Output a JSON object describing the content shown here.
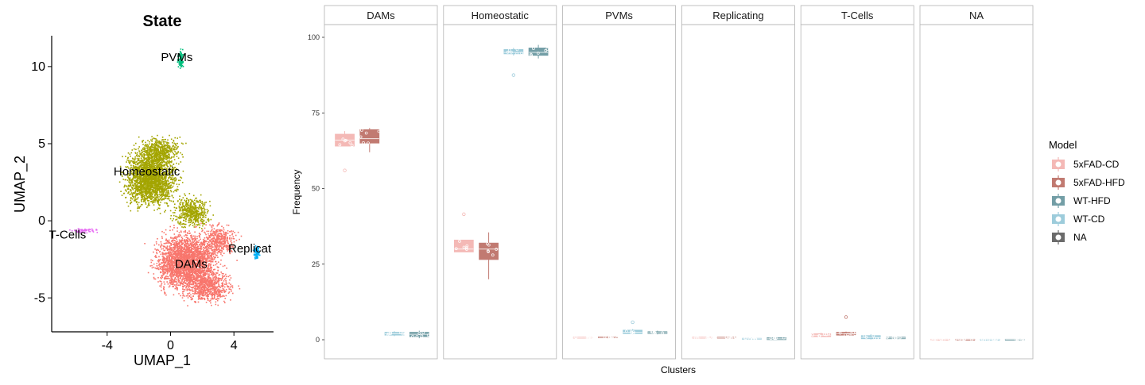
{
  "chart_data": [
    {
      "type": "scatter",
      "title": "State",
      "xlabel": "UMAP_1",
      "ylabel": "UMAP_2",
      "xlim": [
        -7.5,
        6.5
      ],
      "ylim": [
        -7.2,
        12
      ],
      "xticks": [
        -4,
        0,
        4
      ],
      "yticks": [
        -5,
        0,
        5,
        10
      ],
      "clusters": [
        {
          "name": "DAMs",
          "label": "DAMs",
          "color": "#F8766D",
          "label_at": [
            1.3,
            -2.8
          ]
        },
        {
          "name": "Homeostatic",
          "label": "Homeostatic",
          "color": "#A3A500",
          "label_at": [
            -1.5,
            3.2
          ]
        },
        {
          "name": "PVMs",
          "label": "PVMs",
          "color": "#00BF7D",
          "label_at": [
            0.4,
            10.6
          ]
        },
        {
          "name": "Replicating",
          "label": "Replicat",
          "color": "#00B0F6",
          "label_at": [
            5.0,
            -1.8
          ]
        },
        {
          "name": "T-Cells",
          "label": "T-Cells",
          "color": "#E76BF3",
          "label_at": [
            -6.5,
            -0.9
          ]
        }
      ]
    },
    {
      "type": "box",
      "xlabel": "Clusters",
      "ylabel": "Frequency",
      "ylim": [
        0,
        100
      ],
      "yticks": [
        0,
        25,
        50,
        75,
        100
      ],
      "facets": [
        "DAMs",
        "Homeostatic",
        "PVMs",
        "Replicating",
        "T-Cells",
        "NA"
      ],
      "legend": {
        "title": "Model",
        "position": "right",
        "entries": [
          {
            "name": "5xFAD-CD",
            "color": "#F4B9B6"
          },
          {
            "name": "5xFAD-HFD",
            "color": "#C17A71"
          },
          {
            "name": "WT-HFD",
            "color": "#739EA6"
          },
          {
            "name": "WT-CD",
            "color": "#9DCCDB"
          },
          {
            "name": "NA",
            "color": "#6B6B6B"
          }
        ]
      },
      "series": [
        {
          "name": "5xFAD-CD",
          "values": {
            "DAMs": {
              "q1": 64,
              "median": 66,
              "q3": 68,
              "min": 64,
              "max": 69,
              "outliers": [
                56
              ]
            },
            "Homeostatic": {
              "q1": 29,
              "median": 30,
              "q3": 33,
              "min": 29,
              "max": 33,
              "outliers": [
                41.5
              ]
            },
            "PVMs": {
              "q1": 0.5,
              "median": 0.7,
              "q3": 0.9,
              "min": 0.4,
              "max": 1
            },
            "Replicating": {
              "q1": 0.5,
              "median": 0.7,
              "q3": 0.9,
              "min": 0.4,
              "max": 1
            },
            "T-Cells": {
              "q1": 1,
              "median": 1.5,
              "q3": 2,
              "min": 0.8,
              "max": 2.3
            },
            "NA": {
              "q1": 0,
              "median": 0.1,
              "q3": 0.2,
              "min": 0,
              "max": 0.2
            }
          }
        },
        {
          "name": "5xFAD-HFD",
          "values": {
            "DAMs": {
              "q1": 65,
              "median": 66.5,
              "q3": 69.5,
              "min": 62,
              "max": 70
            },
            "Homeostatic": {
              "q1": 26.5,
              "median": 30,
              "q3": 32,
              "min": 20,
              "max": 35.5
            },
            "PVMs": {
              "q1": 0.6,
              "median": 0.8,
              "q3": 1,
              "min": 0.5,
              "max": 1.1
            },
            "Replicating": {
              "q1": 0.5,
              "median": 0.7,
              "q3": 0.9,
              "min": 0.4,
              "max": 1
            },
            "T-Cells": {
              "q1": 1.5,
              "median": 2,
              "q3": 2.5,
              "min": 1.3,
              "max": 2.7,
              "outliers": [
                7.5
              ]
            },
            "NA": {
              "q1": 0,
              "median": 0.1,
              "q3": 0.2,
              "min": 0,
              "max": 0.2
            }
          }
        },
        {
          "name": "WT-CD",
          "values": {
            "DAMs": {
              "q1": 1.5,
              "median": 2,
              "q3": 2.5,
              "min": 1.2,
              "max": 2.8
            },
            "Homeostatic": {
              "q1": 94.5,
              "median": 95,
              "q3": 96,
              "min": 94,
              "max": 96.5,
              "outliers": [
                87.5
              ]
            },
            "PVMs": {
              "q1": 2,
              "median": 2.5,
              "q3": 3.2,
              "min": 1.8,
              "max": 3.5,
              "outliers": [
                5.8
              ]
            },
            "Replicating": {
              "q1": 0.1,
              "median": 0.3,
              "q3": 0.5,
              "min": 0,
              "max": 0.6
            },
            "T-Cells": {
              "q1": 0.3,
              "median": 0.8,
              "q3": 1.4,
              "min": 0.1,
              "max": 1.8
            },
            "NA": {
              "q1": 0,
              "median": 0.1,
              "q3": 0.2,
              "min": 0,
              "max": 0.2
            }
          }
        },
        {
          "name": "WT-HFD",
          "values": {
            "DAMs": {
              "q1": 1,
              "median": 1.8,
              "q3": 2.5,
              "min": 0.5,
              "max": 3
            },
            "Homeostatic": {
              "q1": 94,
              "median": 95,
              "q3": 96.5,
              "min": 93,
              "max": 97.5
            },
            "PVMs": {
              "q1": 2,
              "median": 2.3,
              "q3": 2.7,
              "min": 1.8,
              "max": 3
            },
            "Replicating": {
              "q1": 0,
              "median": 0.3,
              "q3": 0.7,
              "min": 0,
              "max": 0.9
            },
            "T-Cells": {
              "q1": 0.3,
              "median": 0.6,
              "q3": 0.9,
              "min": 0.2,
              "max": 1
            },
            "NA": {
              "q1": 0,
              "median": 0.1,
              "q3": 0.2,
              "min": 0,
              "max": 0.2
            }
          }
        }
      ]
    }
  ]
}
